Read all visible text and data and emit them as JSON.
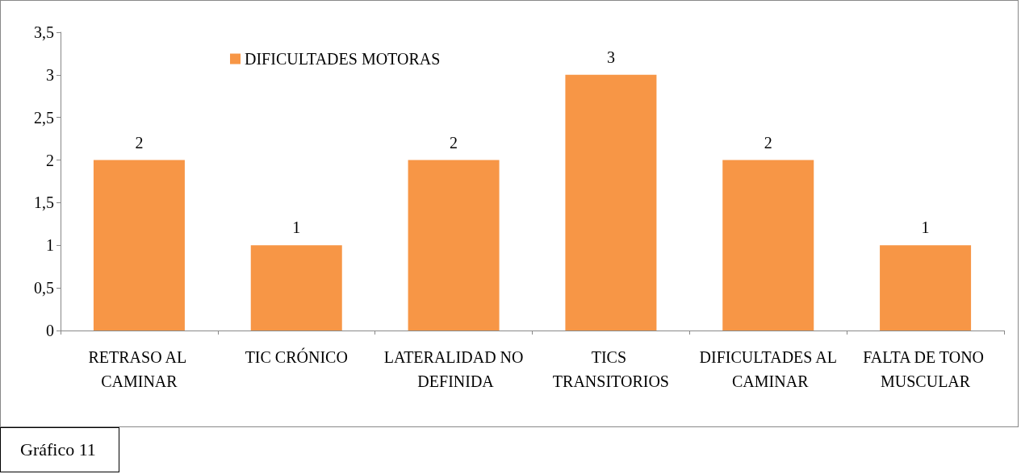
{
  "chart_data": {
    "type": "bar",
    "categories": [
      "RETRASO AL CAMINAR",
      "TIC CRÓNICO",
      "LATERALIDAD NO DEFINIDA",
      "TICS TRANSITORIOS",
      "DIFICULTADES AL CAMINAR",
      "FALTA DE TONO MUSCULAR"
    ],
    "series": [
      {
        "name": "DIFICULTADES MOTORAS",
        "color": "#f79646",
        "values": [
          2,
          1,
          2,
          3,
          2,
          1
        ]
      }
    ],
    "ylim": [
      0,
      3.5
    ],
    "yticks": [
      0,
      {
        "value": 0.5,
        "label": "0,5"
      },
      1,
      {
        "value": 1.5,
        "label": "1,5"
      },
      2,
      {
        "value": 2.5,
        "label": "2,5"
      },
      3,
      {
        "value": 3.5,
        "label": "3,5"
      }
    ],
    "data_labels": true,
    "grid": false,
    "legend": "top left",
    "annotations": [
      "Gráfico 11"
    ]
  }
}
